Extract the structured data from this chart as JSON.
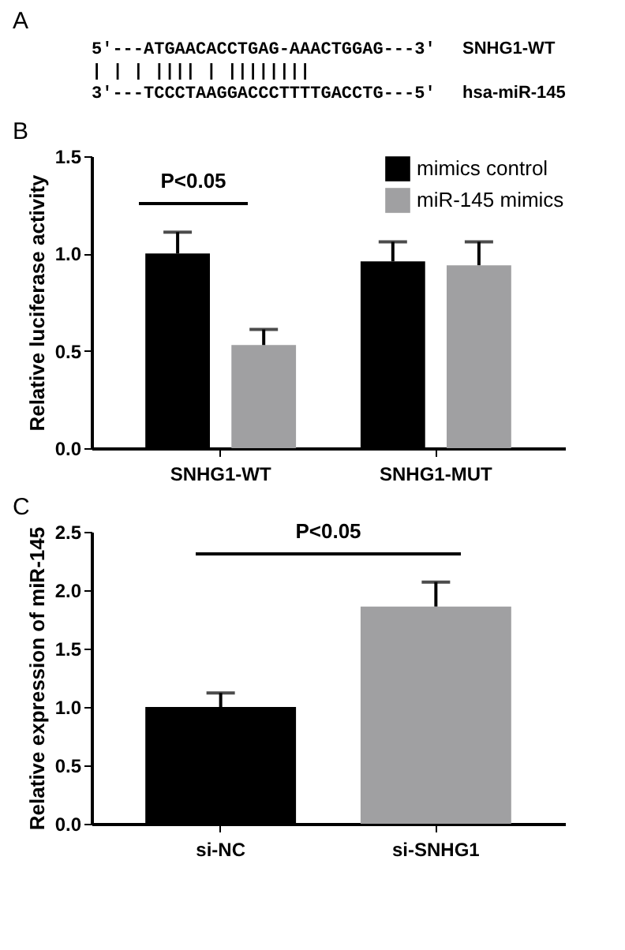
{
  "chart_data": [
    {
      "type": "other",
      "title": "A",
      "annotations": [
        "5′---ATGAACACCTGAG-AAACTGGAG---3′",
        "     | | |  |||| | ||||||||",
        "3′---TCCCTAAGGACCCTTTTGACCTG---5′",
        "SNHG1-WT",
        "hsa-miR-145"
      ]
    },
    {
      "type": "bar",
      "title": "B",
      "ylabel": "Relative luciferase activity",
      "categories": [
        "SNHG1-WT",
        "SNHG1-MUT"
      ],
      "series": [
        {
          "name": "mimics control",
          "color": "#000000",
          "values": [
            1.0,
            0.96
          ],
          "errors": [
            0.11,
            0.1
          ]
        },
        {
          "name": "miR-145 mimics",
          "color": "#a0a0a2",
          "values": [
            0.53,
            0.94
          ],
          "errors": [
            0.08,
            0.12
          ]
        }
      ],
      "ylim": [
        0,
        1.5
      ],
      "yticks": [
        {
          "value": 0,
          "label": "0.0"
        },
        0.5,
        {
          "value": 1,
          "label": "1.0"
        },
        1.5
      ],
      "grid": false,
      "legend": "top right",
      "annotations": [
        "P<0.05"
      ]
    },
    {
      "type": "bar",
      "title": "C",
      "ylabel": "Relative expression of miR-145",
      "categories": [
        "si-NC",
        "si-SNHG1"
      ],
      "values": [
        1.0,
        1.86
      ],
      "errors": [
        0.12,
        0.21
      ],
      "colors": [
        "#000000",
        "#a0a0a2"
      ],
      "ylim": [
        0,
        2.5
      ],
      "yticks": [
        {
          "value": 0,
          "label": "0.0"
        },
        0.5,
        {
          "value": 1,
          "label": "1.0"
        },
        1.5,
        {
          "value": 2,
          "label": "2.0"
        },
        2.5
      ],
      "grid": false,
      "annotations": [
        "P<0.05"
      ]
    }
  ]
}
